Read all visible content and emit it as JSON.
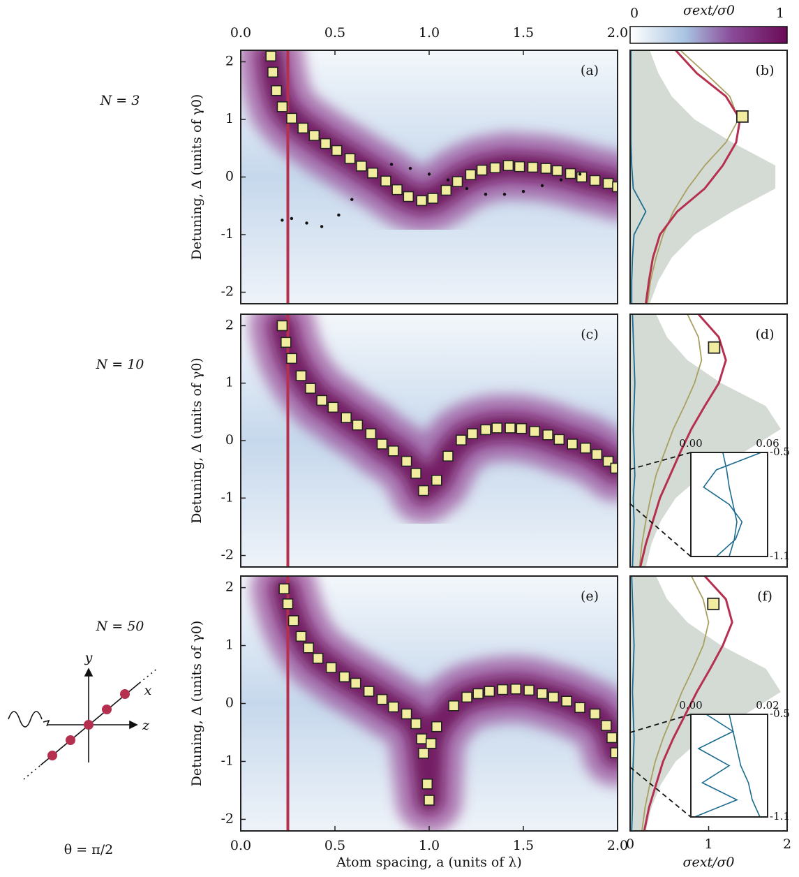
{
  "chart_data": [
    {
      "type": "scatter",
      "label": "(a)",
      "row_label": "N = 3",
      "ylabel": "Detuning, Δ (units of γ0)",
      "xlim": [
        0,
        2
      ],
      "ylim": [
        -2.2,
        2.2
      ],
      "yticks": [
        -2,
        -1,
        0,
        1,
        2
      ],
      "xtick_side": "top",
      "xticks": [
        {
          "value": 0,
          "label": "0.0"
        },
        0.5,
        {
          "value": 1,
          "label": "1.0"
        },
        1.5,
        {
          "value": 2,
          "label": "2.0"
        }
      ],
      "vline": {
        "value": 0.25,
        "color": "#b5304f"
      },
      "series": [
        {
          "color": "#f1eca0",
          "marker": "square",
          "x": [
            0.16,
            0.17,
            0.19,
            0.22,
            0.27,
            0.33,
            0.39,
            0.45,
            0.51,
            0.58,
            0.64,
            0.7,
            0.77,
            0.83,
            0.89,
            0.96,
            1.02,
            1.09,
            1.15,
            1.22,
            1.28,
            1.35,
            1.42,
            1.48,
            1.55,
            1.62,
            1.68,
            1.75,
            1.81,
            1.88,
            1.95,
            2.0
          ],
          "values": [
            2.1,
            1.82,
            1.5,
            1.22,
            1.02,
            0.85,
            0.72,
            0.58,
            0.46,
            0.32,
            0.19,
            0.07,
            -0.07,
            -0.22,
            -0.34,
            -0.41,
            -0.37,
            -0.23,
            -0.08,
            0.04,
            0.12,
            0.16,
            0.2,
            0.18,
            0.17,
            0.15,
            0.11,
            0.06,
            0.0,
            -0.06,
            -0.11,
            -0.17
          ]
        },
        {
          "color": "#111111",
          "marker": "dot",
          "x": [
            0.22,
            0.27,
            0.35,
            0.43,
            0.52,
            0.59,
            0.8,
            0.9,
            1.0,
            1.1,
            1.2,
            1.3,
            1.4,
            1.5,
            1.6,
            1.7,
            1.8
          ],
          "values": [
            -0.75,
            -0.72,
            -0.8,
            -0.86,
            -0.66,
            -0.39,
            0.22,
            0.15,
            0.05,
            -0.05,
            -0.2,
            -0.3,
            -0.3,
            -0.25,
            -0.15,
            -0.05,
            0.05
          ]
        }
      ]
    },
    {
      "type": "line",
      "label": "(b)",
      "xlim": [
        -2.2,
        2.2
      ],
      "ylim": [
        0,
        2
      ],
      "x": [
        -2.2,
        -1.8,
        -1.4,
        -1.0,
        -0.6,
        -0.2,
        0.2,
        0.6,
        1.0,
        1.4,
        1.8,
        2.2
      ],
      "series": [
        {
          "color": "#d4dbd5",
          "area": true,
          "values": [
            0.25,
            0.36,
            0.53,
            0.82,
            1.3,
            1.85,
            1.85,
            1.3,
            0.82,
            0.53,
            0.36,
            0.25
          ]
        },
        {
          "color": "#a8a060",
          "values": [
            0.22,
            0.26,
            0.33,
            0.42,
            0.55,
            0.73,
            0.95,
            1.22,
            1.38,
            1.27,
            0.96,
            0.64
          ]
        },
        {
          "color": "#b5304f",
          "values": [
            0.2,
            0.24,
            0.29,
            0.38,
            0.6,
            0.95,
            1.18,
            1.35,
            1.4,
            1.22,
            0.85,
            0.58
          ]
        },
        {
          "color": "#1c6b8f",
          "values": [
            0.02,
            0.02,
            0.03,
            0.05,
            0.2,
            0.04,
            0.02,
            0.01,
            0.01,
            0.01,
            0.01,
            0.01
          ]
        }
      ],
      "marker": {
        "x": 1.05,
        "value": 1.43,
        "color": "#f1eca0"
      }
    },
    {
      "type": "scatter",
      "label": "(c)",
      "row_label": "N = 10",
      "ylabel": "Detuning, Δ (units of γ0)",
      "xlim": [
        0,
        2
      ],
      "ylim": [
        -2.2,
        2.2
      ],
      "yticks": [
        -2,
        -1,
        0,
        1,
        2
      ],
      "vline": {
        "value": 0.25,
        "color": "#b5304f"
      },
      "series": [
        {
          "color": "#f1eca0",
          "marker": "square",
          "x": [
            0.22,
            0.24,
            0.27,
            0.32,
            0.37,
            0.43,
            0.49,
            0.56,
            0.62,
            0.69,
            0.75,
            0.81,
            0.88,
            0.93,
            0.97,
            1.04,
            1.1,
            1.17,
            1.23,
            1.3,
            1.36,
            1.43,
            1.49,
            1.56,
            1.63,
            1.69,
            1.76,
            1.83,
            1.89,
            1.95,
            1.99
          ],
          "values": [
            2.0,
            1.71,
            1.43,
            1.13,
            0.91,
            0.7,
            0.58,
            0.4,
            0.27,
            0.12,
            -0.06,
            -0.18,
            -0.36,
            -0.57,
            -0.87,
            -0.69,
            -0.27,
            0.01,
            0.12,
            0.19,
            0.22,
            0.22,
            0.21,
            0.16,
            0.1,
            0.02,
            -0.06,
            -0.13,
            -0.24,
            -0.36,
            -0.48
          ]
        }
      ]
    },
    {
      "type": "line",
      "label": "(d)",
      "xlim": [
        -2.2,
        2.2
      ],
      "ylim": [
        0,
        2
      ],
      "x": [
        -2.2,
        -1.8,
        -1.4,
        -1.0,
        -0.6,
        -0.2,
        0.2,
        0.6,
        1.0,
        1.4,
        1.8,
        2.2
      ],
      "series": [
        {
          "color": "#d4dbd5",
          "area": true,
          "values": [
            0.2,
            0.27,
            0.39,
            0.58,
            0.92,
            1.45,
            1.92,
            1.73,
            1.16,
            0.73,
            0.47,
            0.33
          ]
        },
        {
          "color": "#a8a060",
          "values": [
            0.12,
            0.15,
            0.2,
            0.26,
            0.33,
            0.44,
            0.55,
            0.69,
            0.82,
            0.91,
            0.87,
            0.73
          ]
        },
        {
          "color": "#b5304f",
          "values": [
            0.13,
            0.2,
            0.29,
            0.38,
            0.51,
            0.64,
            0.78,
            0.95,
            1.13,
            1.22,
            1.13,
            0.87
          ]
        },
        {
          "color": "#1c6b8f",
          "values": [
            0.03,
            0.04,
            0.05,
            0.04,
            0.06,
            0.05,
            0.04,
            0.05,
            0.06,
            0.05,
            0.04,
            0.03
          ]
        }
      ],
      "marker": {
        "x": 1.62,
        "value": 1.07,
        "color": "#f1eca0"
      },
      "inset": {
        "xlim": [
          -1.1,
          -0.5
        ],
        "xticks": [
          -0.5,
          -1.1
        ],
        "ylim": [
          0,
          0.06
        ],
        "yticks": [
          {
            "value": 0,
            "label": "0.00"
          },
          {
            "value": 0.06,
            "label": "0.06"
          }
        ],
        "x": [
          -1.1,
          -1.0,
          -0.9,
          -0.8,
          -0.7,
          -0.6,
          -0.5
        ],
        "series": [
          {
            "color": "#1c6b8f",
            "values": [
              0.02,
              0.035,
              0.04,
              0.03,
              0.01,
              0.02,
              0.055
            ]
          },
          {
            "color": "#1c6b8f",
            "values": [
              0.03,
              0.034,
              0.036,
              0.033,
              0.03,
              0.028,
              0.025
            ]
          }
        ]
      }
    },
    {
      "type": "scatter",
      "label": "(e)",
      "row_label": "N = 50",
      "ylabel": "Detuning, Δ (units of γ0)",
      "xlabel": "Atom spacing, a (units of λ)",
      "xlim": [
        0,
        2
      ],
      "ylim": [
        -2.2,
        2.2
      ],
      "yticks": [
        -2,
        -1,
        0,
        1,
        2
      ],
      "xtick_side": "bottom",
      "xticks": [
        {
          "value": 0,
          "label": "0.0"
        },
        0.5,
        {
          "value": 1,
          "label": "1.0"
        },
        1.5,
        {
          "value": 2,
          "label": "2.0"
        }
      ],
      "vline": {
        "value": 0.25,
        "color": "#b5304f"
      },
      "series": [
        {
          "color": "#f1eca0",
          "marker": "square",
          "x": [
            0.23,
            0.25,
            0.28,
            0.32,
            0.36,
            0.41,
            0.48,
            0.55,
            0.61,
            0.68,
            0.75,
            0.81,
            0.88,
            0.93,
            0.96,
            0.97,
            0.99,
            1.0,
            1.01,
            1.04,
            1.13,
            1.2,
            1.26,
            1.32,
            1.39,
            1.46,
            1.53,
            1.6,
            1.66,
            1.73,
            1.8,
            1.88,
            1.94,
            1.97,
            1.99
          ],
          "values": [
            1.98,
            1.72,
            1.43,
            1.16,
            0.96,
            0.78,
            0.62,
            0.46,
            0.35,
            0.21,
            0.07,
            -0.06,
            -0.18,
            -0.35,
            -0.61,
            -0.86,
            -1.39,
            -1.67,
            -0.69,
            -0.4,
            -0.04,
            0.11,
            0.17,
            0.21,
            0.24,
            0.25,
            0.23,
            0.17,
            0.11,
            0.04,
            -0.07,
            -0.18,
            -0.38,
            -0.59,
            -0.85
          ]
        }
      ]
    },
    {
      "type": "line",
      "label": "(f)",
      "xlim": [
        -2.2,
        2.2
      ],
      "ylim": [
        0,
        2
      ],
      "yticks": [
        0,
        1,
        2
      ],
      "ylabel": "σext/σ0",
      "x": [
        -2.2,
        -1.8,
        -1.4,
        -1.0,
        -0.6,
        -0.2,
        0.2,
        0.6,
        1.0,
        1.4,
        1.8,
        2.2
      ],
      "series": [
        {
          "color": "#d4dbd5",
          "area": true,
          "values": [
            0.2,
            0.27,
            0.39,
            0.58,
            0.92,
            1.45,
            1.92,
            1.73,
            1.16,
            0.73,
            0.47,
            0.33
          ]
        },
        {
          "color": "#a8a060",
          "values": [
            0.15,
            0.19,
            0.25,
            0.32,
            0.42,
            0.54,
            0.66,
            0.8,
            0.93,
            1.0,
            0.93,
            0.78
          ]
        },
        {
          "color": "#b5304f",
          "values": [
            0.18,
            0.24,
            0.33,
            0.42,
            0.55,
            0.7,
            0.85,
            1.02,
            1.18,
            1.3,
            1.22,
            0.95
          ]
        },
        {
          "color": "#1c6b8f",
          "values": [
            0.02,
            0.03,
            0.03,
            0.04,
            0.05,
            0.04,
            0.03,
            0.04,
            0.05,
            0.04,
            0.03,
            0.02
          ]
        }
      ],
      "marker": {
        "x": 1.72,
        "value": 1.06,
        "color": "#f1eca0"
      },
      "inset": {
        "xlim": [
          -1.1,
          -0.5
        ],
        "xticks": [
          -0.5,
          -1.1
        ],
        "ylim": [
          0,
          0.02
        ],
        "yticks": [
          {
            "value": 0,
            "label": "0.00"
          },
          {
            "value": 0.02,
            "label": "0.02"
          }
        ],
        "x": [
          -1.1,
          -1.0,
          -0.9,
          -0.8,
          -0.7,
          -0.6,
          -0.5
        ],
        "series": [
          {
            "color": "#1c6b8f",
            "values": [
              0.001,
              0.012,
              0.003,
              0.01,
              0.002,
              0.011,
              0.004
            ]
          },
          {
            "color": "#1c6b8f",
            "values": [
              0.018,
              0.016,
              0.015,
              0.013,
              0.012,
              0.011,
              0.01
            ]
          }
        ]
      }
    }
  ],
  "colorbar": {
    "label": "σext/σ0",
    "ticks": [
      0,
      1
    ]
  },
  "diagram": {
    "axis_labels": [
      "y",
      "x",
      "z"
    ],
    "angle": "θ = π/2"
  }
}
